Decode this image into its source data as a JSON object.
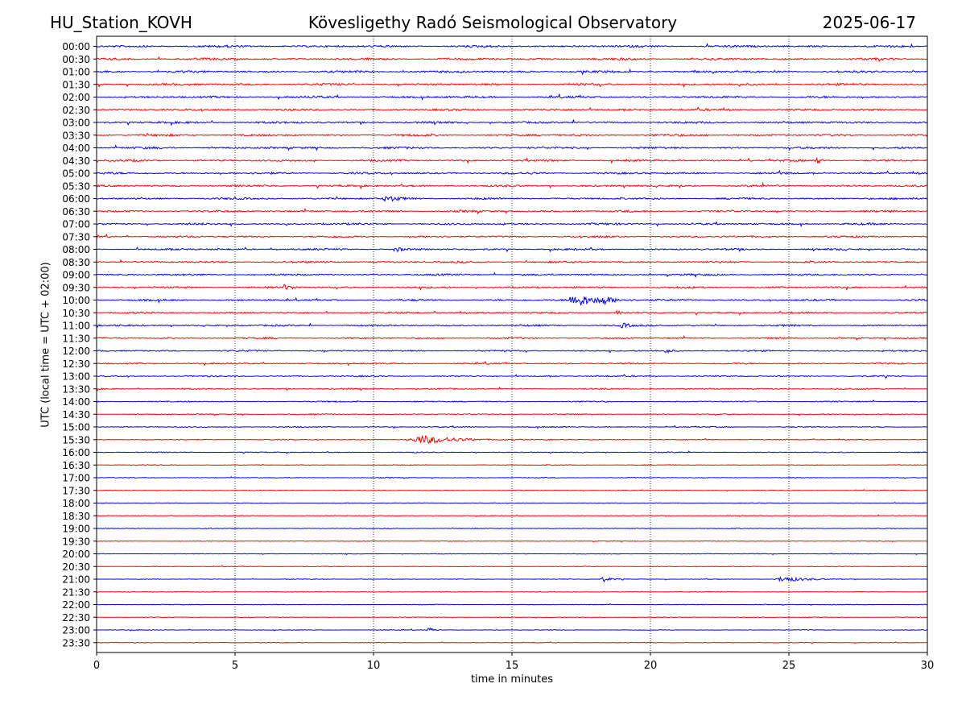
{
  "header": {
    "station": "HU_Station_KOVH",
    "observatory": "Kövesligethy Radó Seismological Observatory",
    "date": "2025-06-17"
  },
  "colors": {
    "odd_trace": "#0000ff",
    "even_trace": "#ff0000",
    "axes": "#000000",
    "grid": "#000000"
  },
  "chart_data": {
    "type": "line",
    "title": "Kövesligethy Radó Seismological Observatory",
    "xlabel": "time in minutes",
    "ylabel": "UTC (local time = UTC + 02:00)",
    "xlim": [
      0,
      30
    ],
    "x_ticks": [
      "0",
      "5",
      "10",
      "15",
      "20",
      "25",
      "30"
    ],
    "x_gridlines": [
      5,
      10,
      15,
      20,
      25
    ],
    "grid": "vertical dotted",
    "rows": [
      "00:00",
      "00:30",
      "01:00",
      "01:30",
      "02:00",
      "02:30",
      "03:00",
      "03:30",
      "04:00",
      "04:30",
      "05:00",
      "05:30",
      "06:00",
      "06:30",
      "07:00",
      "07:30",
      "08:00",
      "08:30",
      "09:00",
      "09:30",
      "10:00",
      "10:30",
      "11:00",
      "11:30",
      "12:00",
      "12:30",
      "13:00",
      "13:30",
      "14:00",
      "14:30",
      "15:00",
      "15:30",
      "16:00",
      "16:30",
      "17:00",
      "17:30",
      "18:00",
      "18:30",
      "19:00",
      "19:30",
      "20:00",
      "20:30",
      "21:00",
      "21:30",
      "22:00",
      "22:30",
      "23:00",
      "23:30"
    ],
    "row_colors": [
      "blue",
      "red"
    ],
    "trace_noise_level": [
      0.9,
      0.9,
      0.9,
      0.9,
      0.85,
      0.85,
      0.85,
      0.85,
      0.85,
      0.85,
      0.85,
      0.85,
      0.8,
      0.8,
      0.8,
      0.75,
      0.75,
      0.75,
      0.75,
      0.75,
      0.75,
      0.7,
      0.7,
      0.65,
      0.65,
      0.6,
      0.6,
      0.55,
      0.5,
      0.45,
      0.45,
      0.4,
      0.4,
      0.35,
      0.35,
      0.3,
      0.3,
      0.3,
      0.3,
      0.3,
      0.3,
      0.3,
      0.3,
      0.3,
      0.3,
      0.3,
      0.3,
      0.3
    ],
    "events": [
      {
        "row": "04:30",
        "minute": 26.0,
        "duration": 0.3,
        "amplitude": 2.0
      },
      {
        "row": "06:00",
        "minute": 10.5,
        "duration": 0.8,
        "amplitude": 1.6
      },
      {
        "row": "08:00",
        "minute": 10.8,
        "duration": 0.5,
        "amplitude": 1.3
      },
      {
        "row": "09:30",
        "minute": 6.8,
        "duration": 0.6,
        "amplitude": 1.3
      },
      {
        "row": "10:00",
        "minute": 17.3,
        "duration": 1.5,
        "amplitude": 3.5
      },
      {
        "row": "10:00",
        "minute": 18.3,
        "duration": 0.8,
        "amplitude": 1.8
      },
      {
        "row": "10:30",
        "minute": 18.8,
        "duration": 0.3,
        "amplitude": 1.3
      },
      {
        "row": "11:00",
        "minute": 19.0,
        "duration": 0.5,
        "amplitude": 1.2
      },
      {
        "row": "12:00",
        "minute": 20.6,
        "duration": 0.3,
        "amplitude": 1.3
      },
      {
        "row": "15:30",
        "minute": 11.8,
        "duration": 2.5,
        "amplitude": 2.2
      },
      {
        "row": "21:00",
        "minute": 18.3,
        "duration": 0.6,
        "amplitude": 1.4
      },
      {
        "row": "21:00",
        "minute": 24.8,
        "duration": 1.5,
        "amplitude": 1.5
      },
      {
        "row": "23:00",
        "minute": 12.0,
        "duration": 0.4,
        "amplitude": 1.2
      }
    ]
  }
}
